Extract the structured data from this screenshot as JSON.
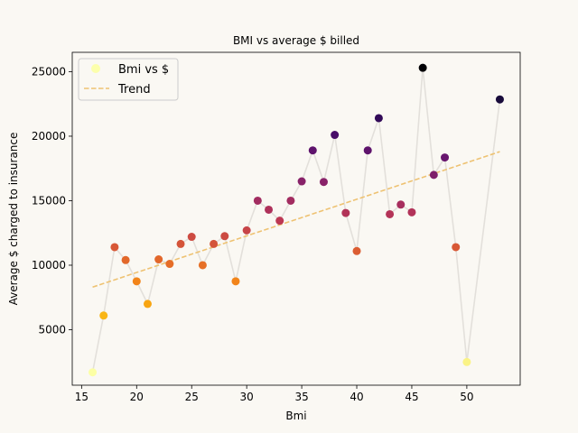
{
  "chart_data": {
    "type": "scatter",
    "title": "BMI vs average $ billed",
    "xlabel": "Bmi",
    "ylabel": "Average $ charged to insurance",
    "xlim": [
      14.15,
      54.85
    ],
    "ylim": [
      700,
      26500
    ],
    "xticks": [
      15,
      20,
      25,
      30,
      35,
      40,
      45,
      50
    ],
    "yticks": [
      5000,
      10000,
      15000,
      20000,
      25000
    ],
    "grid": false,
    "legend_position": "top-left",
    "colormap": "inferno (reversed): light yellow = low charge, black = high charge",
    "series": [
      {
        "name": "Bmi vs $",
        "kind": "scatter with connecting line",
        "line_color": "#e3e0db",
        "x": [
          16,
          17,
          18,
          19,
          20,
          21,
          22,
          23,
          24,
          25,
          26,
          27,
          28,
          29,
          30,
          31,
          32,
          33,
          34,
          35,
          36,
          37,
          38,
          39,
          40,
          41,
          42,
          43,
          44,
          45,
          46,
          47,
          48,
          49,
          50,
          53
        ],
        "y": [
          1700,
          6100,
          11400,
          10400,
          8750,
          7000,
          10450,
          10100,
          11650,
          12200,
          10000,
          11650,
          12250,
          8750,
          12700,
          15000,
          14300,
          13450,
          15000,
          16500,
          18900,
          16450,
          20100,
          14050,
          11100,
          18900,
          21400,
          13950,
          14700,
          14100,
          25300,
          17000,
          18350,
          11400,
          2500,
          22850
        ]
      },
      {
        "name": "Trend",
        "kind": "dashed line",
        "color": "#eec272",
        "x": [
          16,
          53
        ],
        "y": [
          8300,
          18800
        ]
      }
    ]
  }
}
